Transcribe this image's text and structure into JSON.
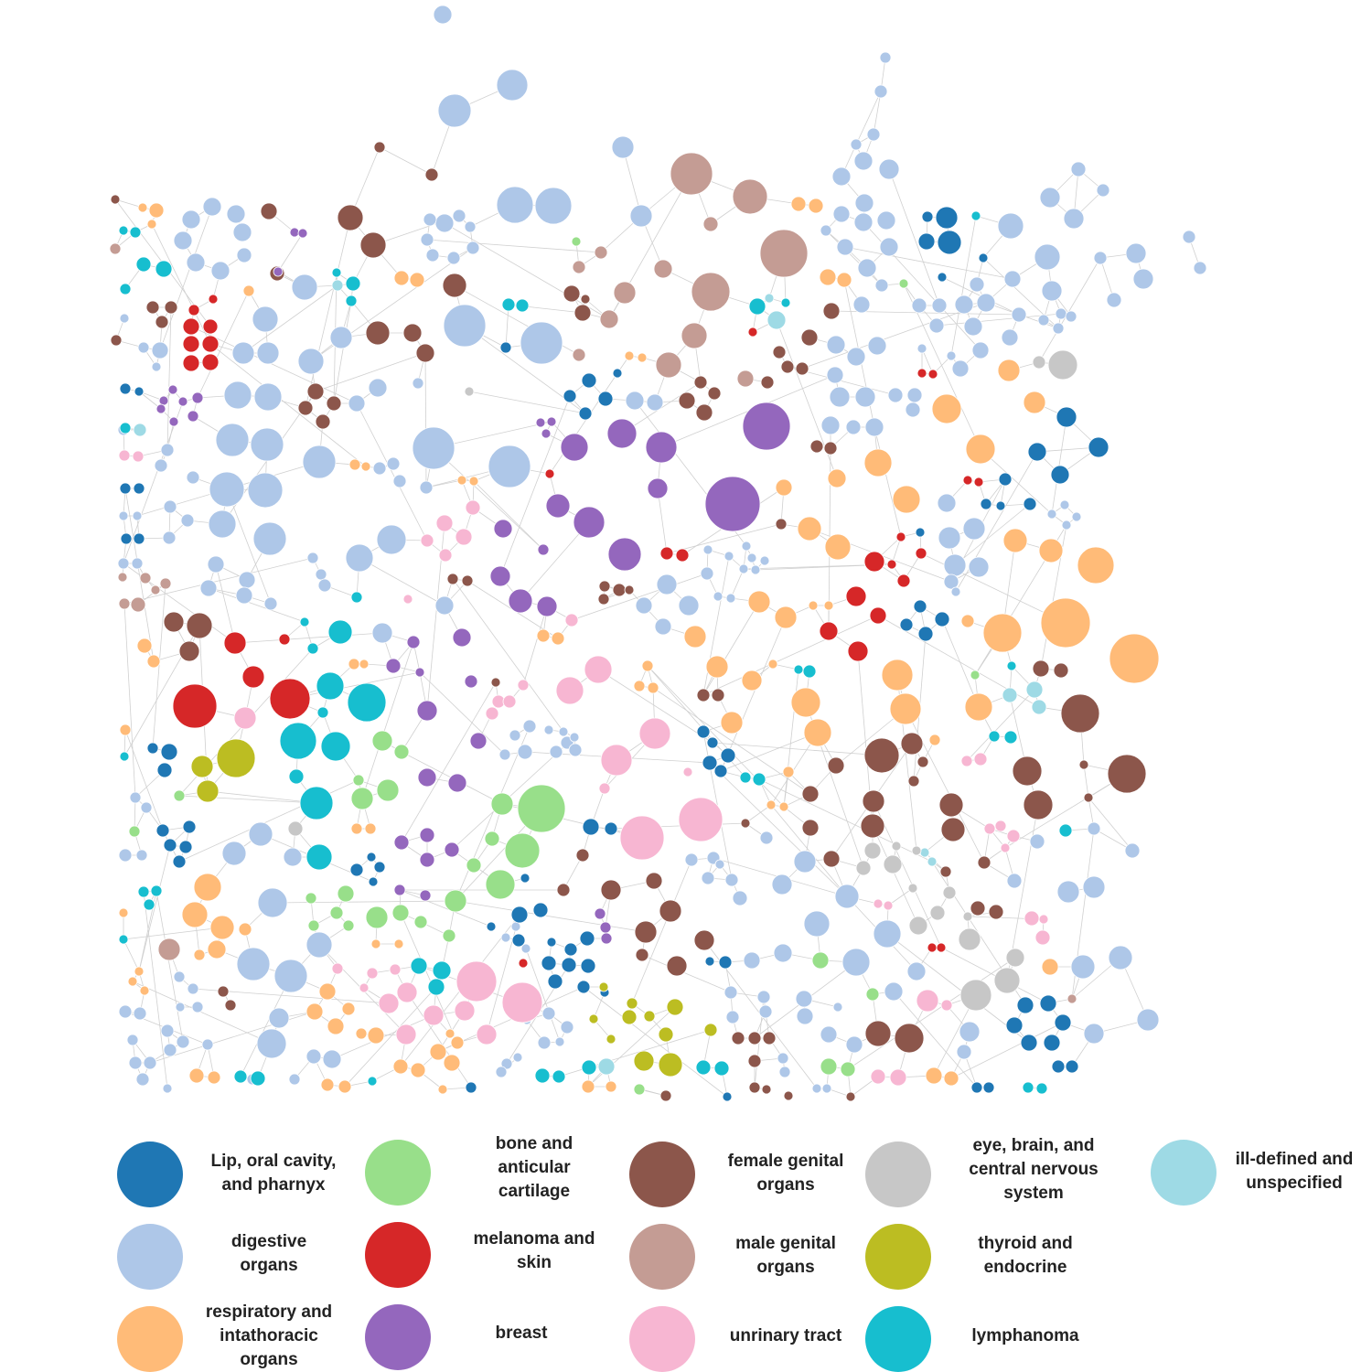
{
  "categories": [
    {
      "key": "lip",
      "label": "Lip, oral cavity,\nand pharnyx",
      "color": "#1f77b4"
    },
    {
      "key": "digestive",
      "label": "digestive\norgans",
      "color": "#aec7e8"
    },
    {
      "key": "respiratory",
      "label": "respiratory and\nintathoracic\norgans",
      "color": "#ffbb78"
    },
    {
      "key": "bone",
      "label": "bone and\nanticular\ncartilage",
      "color": "#98df8a"
    },
    {
      "key": "melanoma",
      "label": "melanoma and\nskin",
      "color": "#d62728"
    },
    {
      "key": "breast",
      "label": "breast",
      "color": "#9467bd"
    },
    {
      "key": "female",
      "label": "female genital\norgans",
      "color": "#8c564b"
    },
    {
      "key": "male",
      "label": "male genital\norgans",
      "color": "#c49c94"
    },
    {
      "key": "urinary",
      "label": "unrinary tract",
      "color": "#f7b6d2"
    },
    {
      "key": "eye",
      "label": "eye, brain, and\ncentral nervous\nsystem",
      "color": "#c7c7c7"
    },
    {
      "key": "thyroid",
      "label": "thyroid and\nendocrine",
      "color": "#bcbd22"
    },
    {
      "key": "lymph",
      "label": "lymphanoma",
      "color": "#17becf"
    },
    {
      "key": "ill",
      "label": "ill-defined and\nunspecified",
      "color": "#9edae5"
    }
  ],
  "edge_color": "#d0d0d0",
  "node_stroke": "#ffffff"
}
